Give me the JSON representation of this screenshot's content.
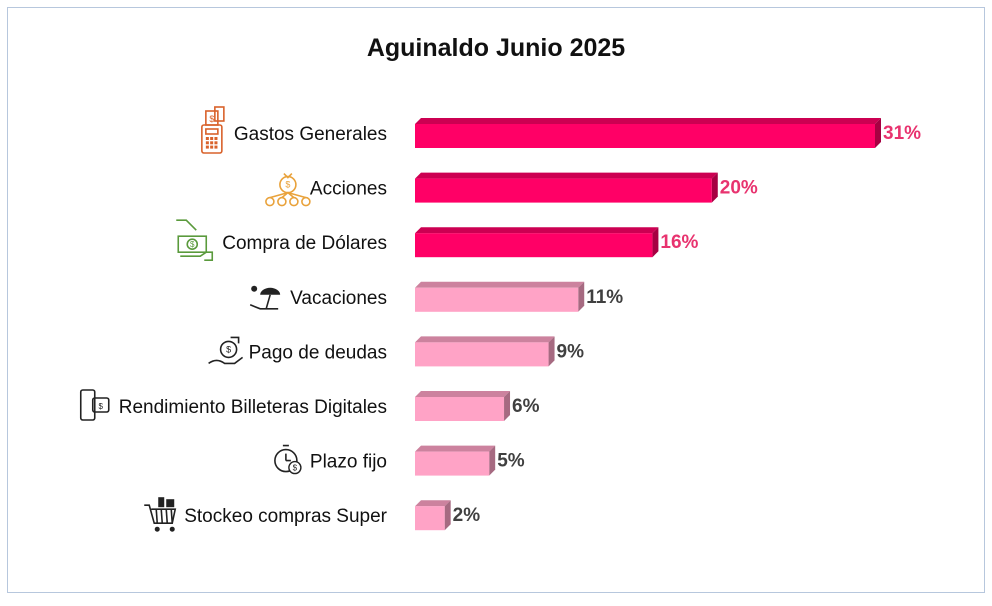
{
  "chart_data": {
    "type": "bar",
    "orientation": "horizontal",
    "title": "Aguinaldo Junio 2025",
    "categories": [
      "Gastos Generales",
      "Acciones",
      "Compra de Dólares",
      "Vacaciones",
      "Pago de deudas",
      "Rendimiento Billeteras Digitales",
      "Plazo fijo",
      "Stockeo compras Super"
    ],
    "values": [
      31,
      20,
      16,
      11,
      9,
      6,
      5,
      2
    ],
    "value_labels": [
      "31%",
      "20%",
      "16%",
      "11%",
      "9%",
      "6%",
      "5%",
      "2%"
    ],
    "icons": [
      "pos-terminal-icon",
      "money-bags-network-icon",
      "hand-dollar-bill-icon",
      "beach-umbrella-icon",
      "hand-money-bag-icon",
      "phone-wallet-icon",
      "stopwatch-dollar-icon",
      "shopping-cart-icon"
    ],
    "icon_colors": [
      "#d9622b",
      "#e9a23b",
      "#5a9a3c",
      "#222222",
      "#222222",
      "#222222",
      "#222222",
      "#222222"
    ],
    "highlight_count": 3,
    "colors": {
      "highlight": "#ff0066",
      "highlight_label": "#e8336f",
      "normal": "#ffa3c6",
      "normal_label": "#404040"
    },
    "xlim": [
      0,
      31
    ],
    "grid": false,
    "axes_visible": false,
    "legend": "none"
  }
}
